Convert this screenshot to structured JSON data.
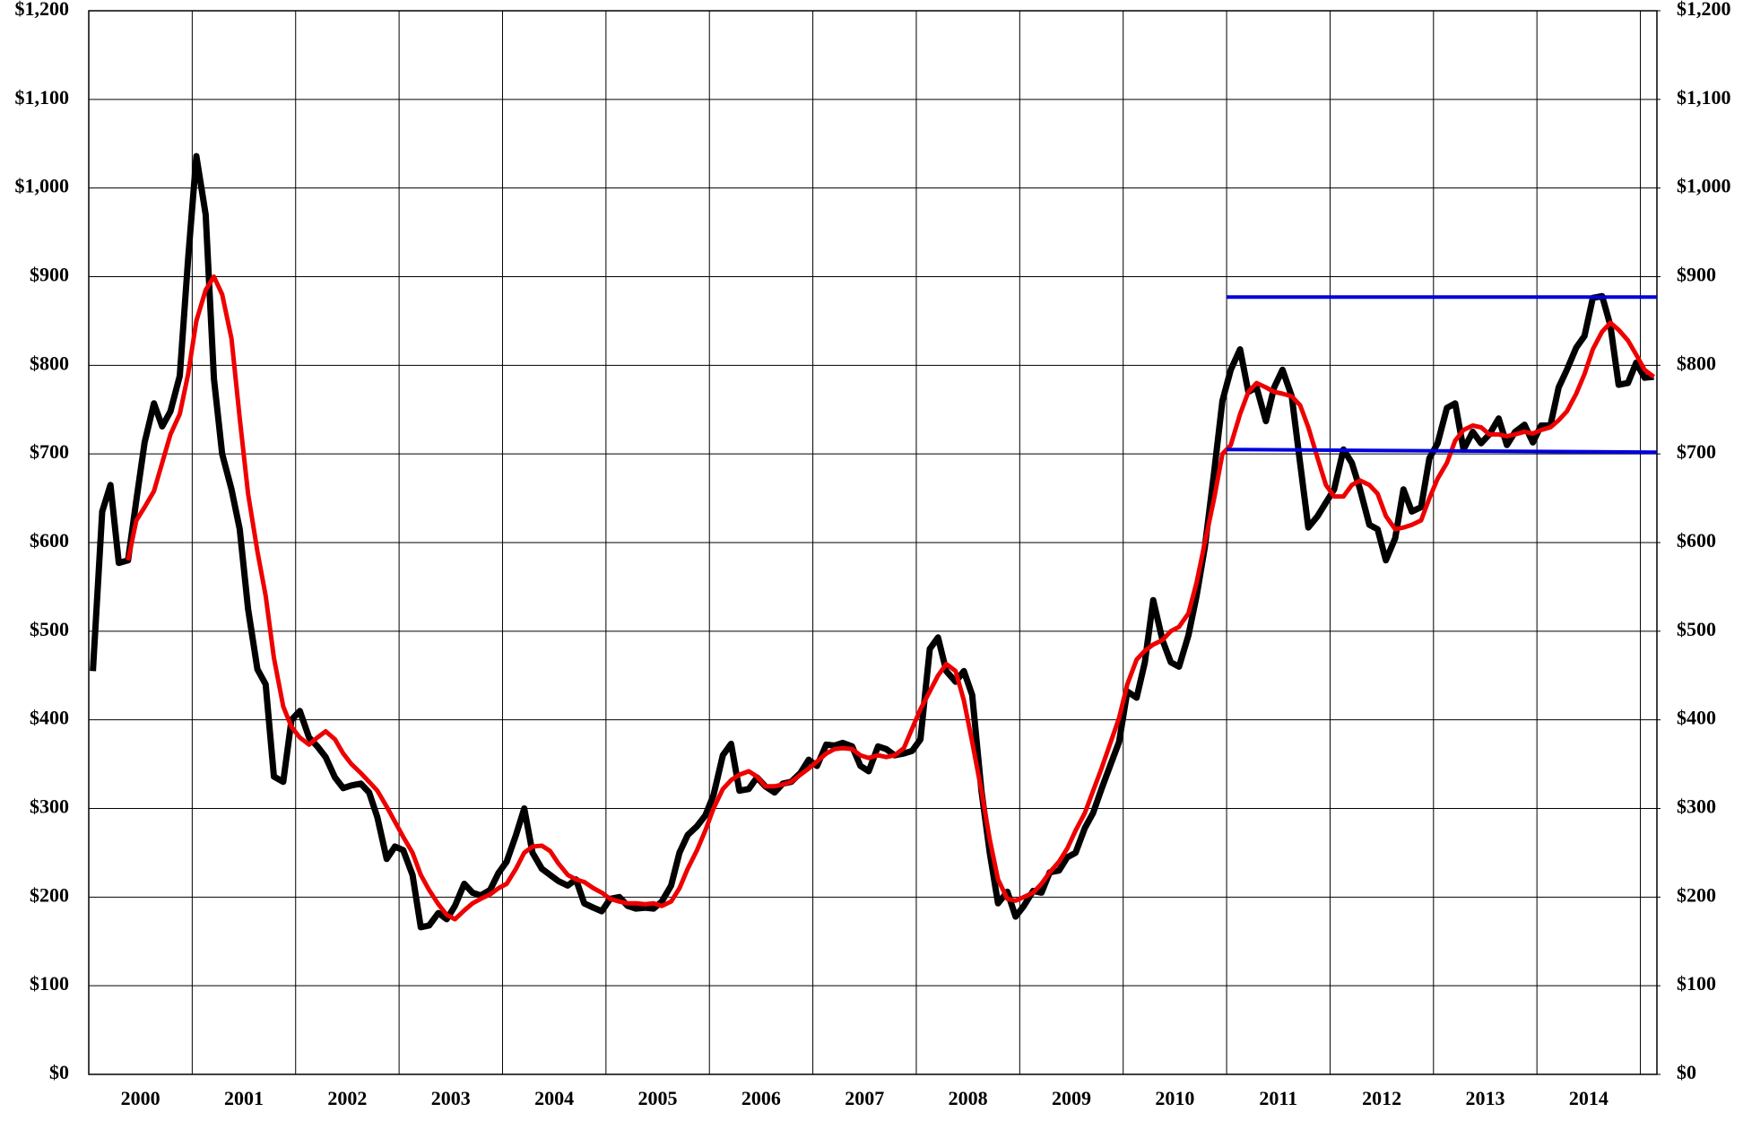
{
  "chart_data": {
    "type": "line",
    "x": [
      2000.04,
      2000.13,
      2000.21,
      2000.29,
      2000.38,
      2000.46,
      2000.54,
      2000.63,
      2000.71,
      2000.79,
      2000.88,
      2000.96,
      2001.04,
      2001.13,
      2001.21,
      2001.29,
      2001.38,
      2001.46,
      2001.54,
      2001.63,
      2001.71,
      2001.79,
      2001.88,
      2001.96,
      2002.04,
      2002.13,
      2002.21,
      2002.29,
      2002.38,
      2002.46,
      2002.54,
      2002.63,
      2002.71,
      2002.79,
      2002.88,
      2002.96,
      2003.04,
      2003.13,
      2003.21,
      2003.29,
      2003.38,
      2003.46,
      2003.54,
      2003.63,
      2003.71,
      2003.79,
      2003.88,
      2003.96,
      2004.04,
      2004.13,
      2004.21,
      2004.29,
      2004.38,
      2004.46,
      2004.54,
      2004.63,
      2004.71,
      2004.79,
      2004.88,
      2004.96,
      2005.04,
      2005.13,
      2005.21,
      2005.29,
      2005.38,
      2005.46,
      2005.54,
      2005.63,
      2005.71,
      2005.79,
      2005.88,
      2005.96,
      2006.04,
      2006.13,
      2006.21,
      2006.29,
      2006.38,
      2006.46,
      2006.54,
      2006.63,
      2006.71,
      2006.79,
      2006.88,
      2006.96,
      2007.04,
      2007.13,
      2007.21,
      2007.29,
      2007.38,
      2007.46,
      2007.54,
      2007.63,
      2007.71,
      2007.79,
      2007.88,
      2007.96,
      2008.04,
      2008.13,
      2008.21,
      2008.29,
      2008.38,
      2008.46,
      2008.54,
      2008.63,
      2008.71,
      2008.79,
      2008.88,
      2008.96,
      2009.04,
      2009.13,
      2009.21,
      2009.29,
      2009.38,
      2009.46,
      2009.54,
      2009.63,
      2009.71,
      2009.79,
      2009.88,
      2009.96,
      2010.04,
      2010.13,
      2010.21,
      2010.29,
      2010.38,
      2010.46,
      2010.54,
      2010.63,
      2010.71,
      2010.79,
      2010.88,
      2010.96,
      2011.04,
      2011.13,
      2011.21,
      2011.29,
      2011.38,
      2011.46,
      2011.54,
      2011.63,
      2011.71,
      2011.79,
      2011.88,
      2011.96,
      2012.04,
      2012.13,
      2012.21,
      2012.29,
      2012.38,
      2012.46,
      2012.54,
      2012.63,
      2012.71,
      2012.79,
      2012.88,
      2012.96,
      2013.04,
      2013.13,
      2013.21,
      2013.29,
      2013.38,
      2013.46,
      2013.54,
      2013.63,
      2013.71,
      2013.79,
      2013.88,
      2013.96,
      2014.04,
      2014.13,
      2014.21,
      2014.29,
      2014.38,
      2014.46,
      2014.54,
      2014.63,
      2014.71,
      2014.79,
      2014.88,
      2014.96,
      2015.04,
      2015.13
    ],
    "series": [
      {
        "color": "#000000",
        "values": [
          455,
          635,
          665,
          577,
          580,
          648,
          713,
          757,
          731,
          748,
          788,
          920,
          1036,
          970,
          785,
          700,
          660,
          615,
          525,
          457,
          440,
          336,
          330,
          400,
          410,
          380,
          370,
          358,
          335,
          323,
          326,
          328,
          318,
          290,
          243,
          257,
          253,
          225,
          166,
          168,
          182,
          175,
          190,
          215,
          205,
          202,
          208,
          227,
          240,
          270,
          300,
          250,
          232,
          225,
          218,
          213,
          220,
          193,
          188,
          184,
          198,
          200,
          190,
          187,
          188,
          187,
          195,
          213,
          250,
          270,
          280,
          292,
          315,
          360,
          373,
          320,
          322,
          335,
          325,
          318,
          328,
          330,
          340,
          355,
          348,
          372,
          371,
          374,
          370,
          348,
          342,
          370,
          367,
          360,
          362,
          365,
          378,
          480,
          493,
          455,
          443,
          455,
          428,
          320,
          250,
          193,
          206,
          178,
          190,
          207,
          205,
          228,
          230,
          245,
          250,
          278,
          295,
          322,
          350,
          375,
          432,
          425,
          465,
          535,
          490,
          465,
          460,
          495,
          540,
          595,
          680,
          760,
          795,
          818,
          770,
          775,
          737,
          775,
          795,
          765,
          690,
          617,
          630,
          645,
          660,
          705,
          690,
          660,
          620,
          615,
          580,
          605,
          660,
          635,
          640,
          695,
          712,
          752,
          757,
          705,
          725,
          712,
          722,
          740,
          710,
          725,
          733,
          713,
          732,
          732,
          775,
          795,
          820,
          833,
          876,
          878,
          845,
          778,
          780,
          803,
          786,
          787
        ]
      },
      {
        "color": "#ee0000",
        "values": [
          null,
          null,
          null,
          null,
          580,
          625,
          640,
          658,
          690,
          722,
          745,
          790,
          850,
          885,
          900,
          880,
          830,
          740,
          655,
          590,
          540,
          470,
          415,
          392,
          380,
          372,
          380,
          387,
          378,
          362,
          350,
          340,
          330,
          320,
          302,
          285,
          268,
          250,
          225,
          208,
          192,
          180,
          175,
          185,
          193,
          198,
          203,
          210,
          215,
          232,
          250,
          257,
          258,
          252,
          238,
          225,
          220,
          217,
          210,
          205,
          198,
          195,
          193,
          193,
          192,
          193,
          190,
          195,
          210,
          232,
          253,
          275,
          300,
          322,
          332,
          338,
          342,
          336,
          325,
          325,
          327,
          330,
          338,
          345,
          353,
          362,
          367,
          368,
          367,
          360,
          357,
          360,
          358,
          360,
          368,
          390,
          412,
          432,
          450,
          463,
          455,
          422,
          375,
          320,
          265,
          220,
          198,
          196,
          200,
          205,
          215,
          228,
          240,
          255,
          275,
          295,
          320,
          345,
          375,
          402,
          440,
          468,
          478,
          485,
          490,
          500,
          505,
          520,
          555,
          600,
          650,
          700,
          710,
          745,
          770,
          780,
          775,
          770,
          768,
          765,
          755,
          730,
          695,
          665,
          652,
          652,
          665,
          670,
          665,
          655,
          630,
          615,
          617,
          620,
          625,
          650,
          672,
          690,
          715,
          727,
          732,
          730,
          722,
          722,
          720,
          722,
          725,
          723,
          727,
          730,
          738,
          748,
          768,
          790,
          818,
          838,
          848,
          840,
          828,
          812,
          795,
          787
        ]
      }
    ],
    "hlines": [
      {
        "color": "#0000dd",
        "x": [
          2011.0,
          2015.16
        ],
        "values": [
          877,
          877
        ]
      },
      {
        "color": "#0000dd",
        "x": [
          2011.0,
          2015.16
        ],
        "values": [
          705,
          702
        ]
      }
    ],
    "xlim": [
      2000,
      2015.16
    ],
    "xticks": [
      {
        "value": 2000.5,
        "label": "2000"
      },
      {
        "value": 2001.5,
        "label": "2001"
      },
      {
        "value": 2002.5,
        "label": "2002"
      },
      {
        "value": 2003.5,
        "label": "2003"
      },
      {
        "value": 2004.5,
        "label": "2004"
      },
      {
        "value": 2005.5,
        "label": "2005"
      },
      {
        "value": 2006.5,
        "label": "2006"
      },
      {
        "value": 2007.5,
        "label": "2007"
      },
      {
        "value": 2008.5,
        "label": "2008"
      },
      {
        "value": 2009.5,
        "label": "2009"
      },
      {
        "value": 2010.5,
        "label": "2010"
      },
      {
        "value": 2011.5,
        "label": "2011"
      },
      {
        "value": 2012.5,
        "label": "2012"
      },
      {
        "value": 2013.5,
        "label": "2013"
      },
      {
        "value": 2014.5,
        "label": "2014"
      }
    ],
    "xgrid": [
      2001,
      2002,
      2003,
      2004,
      2005,
      2006,
      2007,
      2008,
      2009,
      2010,
      2011,
      2012,
      2013,
      2014,
      2015
    ],
    "ylim": [
      0,
      1200
    ],
    "yticks": [
      {
        "value": 0,
        "label": "$0"
      },
      {
        "value": 100,
        "label": "$100"
      },
      {
        "value": 200,
        "label": "$200"
      },
      {
        "value": 300,
        "label": "$300"
      },
      {
        "value": 400,
        "label": "$400"
      },
      {
        "value": 500,
        "label": "$500"
      },
      {
        "value": 600,
        "label": "$600"
      },
      {
        "value": 700,
        "label": "$700"
      },
      {
        "value": 800,
        "label": "$800"
      },
      {
        "value": 900,
        "label": "$900"
      },
      {
        "value": 1000,
        "label": "$1,000"
      },
      {
        "value": 1100,
        "label": "$1,100"
      },
      {
        "value": 1200,
        "label": "$1,200"
      }
    ],
    "y2lim": [
      0,
      1200
    ],
    "y2ticks": [
      {
        "value": 0,
        "label": "$0"
      },
      {
        "value": 100,
        "label": "$100"
      },
      {
        "value": 200,
        "label": "$200"
      },
      {
        "value": 300,
        "label": "$300"
      },
      {
        "value": 400,
        "label": "$400"
      },
      {
        "value": 500,
        "label": "$500"
      },
      {
        "value": 600,
        "label": "$600"
      },
      {
        "value": 700,
        "label": "$700"
      },
      {
        "value": 800,
        "label": "$800"
      },
      {
        "value": 900,
        "label": "$900"
      },
      {
        "value": 1000,
        "label": "$1,000"
      },
      {
        "value": 1100,
        "label": "$1,100"
      },
      {
        "value": 1200,
        "label": "$1,200"
      }
    ],
    "grid": true
  }
}
